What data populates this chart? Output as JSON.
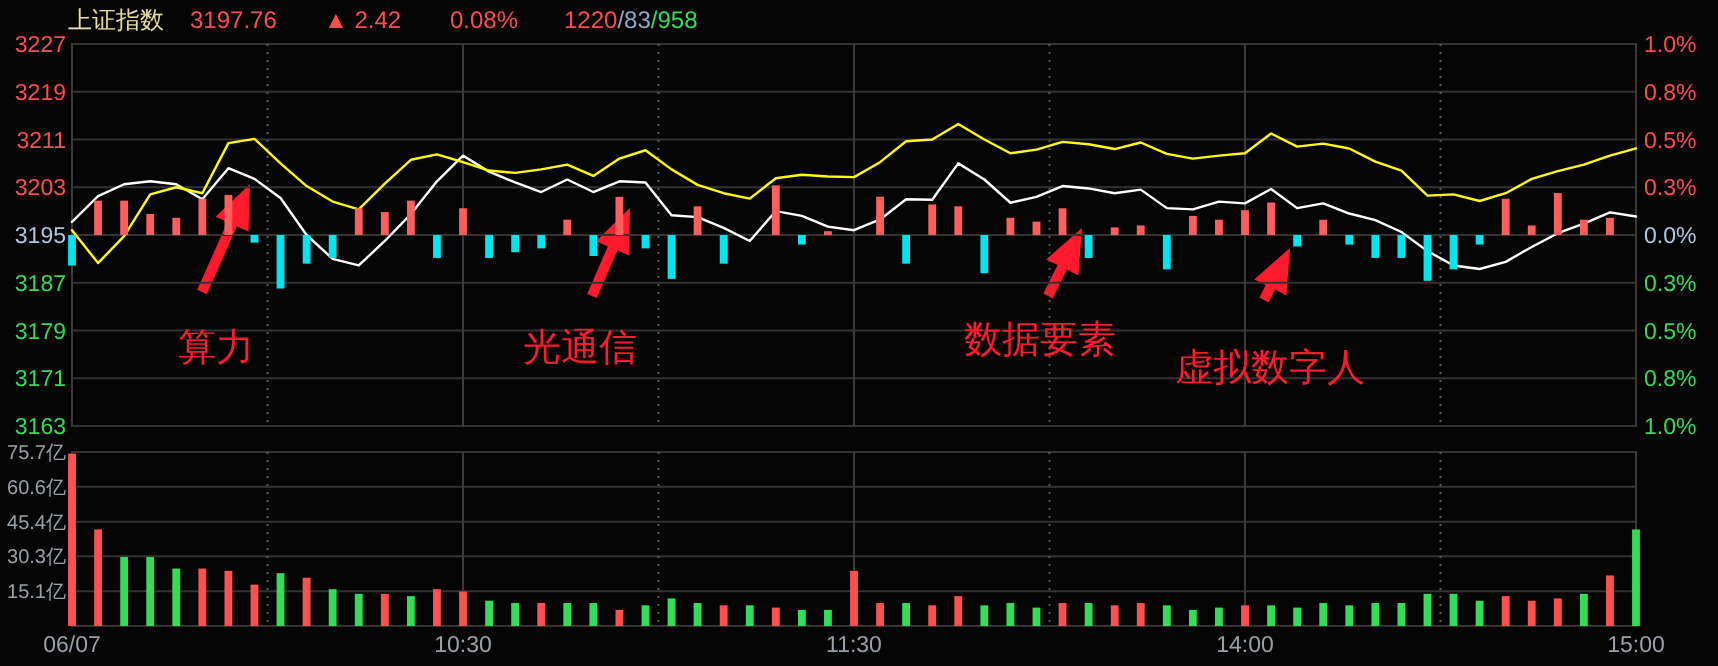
{
  "chart_data": [
    {
      "type": "line",
      "title": "上证指数",
      "annotations": [
        "3197.76",
        "▲ 2.42",
        "0.08%",
        "1220/83/958",
        "算力",
        "光通信",
        "数据要素",
        "虚拟数字人"
      ],
      "categories": [
        null,
        null,
        null,
        null,
        null,
        null,
        null,
        null,
        null,
        null,
        null,
        null,
        null,
        null,
        null,
        null,
        null,
        null,
        null,
        null,
        null,
        null,
        null,
        null,
        null,
        null,
        null,
        null,
        null,
        null,
        null,
        null,
        null,
        null,
        null,
        null,
        null,
        null,
        null,
        null,
        null,
        null,
        null,
        null,
        null,
        null,
        null,
        null,
        null,
        null,
        null,
        null,
        null,
        null,
        null,
        null,
        null,
        null,
        null,
        null,
        null
      ],
      "ylim": [
        3163,
        3227
      ],
      "yticks": [
        3163,
        3171,
        3179,
        3187,
        3195,
        3203,
        3211,
        3219,
        3227
      ],
      "y2lim": [
        -1,
        1
      ],
      "y2ticks": [
        {
          "value": -1,
          "label": "1.0%"
        },
        {
          "value": -0.75,
          "label": "0.8%"
        },
        {
          "value": -0.5,
          "label": "0.5%"
        },
        {
          "value": -0.25,
          "label": "0.3%"
        },
        {
          "value": 0,
          "label": "0.0%"
        },
        {
          "value": 0.25,
          "label": "0.3%"
        },
        {
          "value": 0.5,
          "label": "0.5%"
        },
        {
          "value": 0.75,
          "label": "0.8%"
        },
        {
          "value": 1,
          "label": "1.0%"
        }
      ],
      "grid": true,
      "tick_labels": "y",
      "series": [
        {
          "color": "#ffffff",
          "values": [
            3197.2,
            3201.5,
            3203.5,
            3204,
            3203.5,
            3201,
            3206.2,
            3204.4,
            3201.2,
            3195,
            3191,
            3189.9,
            3194,
            3198.5,
            3204,
            3208.3,
            3205.6,
            3203.8,
            3202.2,
            3204.3,
            3202.2,
            3204,
            3203.8,
            3198.3,
            3198,
            3196.2,
            3194,
            3199,
            3198.2,
            3196.4,
            3195.8,
            3197.6,
            3201,
            3200.9,
            3207,
            3204.3,
            3200.4,
            3201.4,
            3203.2,
            3202.8,
            3202,
            3202.6,
            3199.5,
            3199.3,
            3200.6,
            3200.3,
            3202.7,
            3199.5,
            3200.3,
            3198.6,
            3197.5,
            3195.5,
            3192.3,
            3189.9,
            3189.3,
            3190.5,
            3193,
            3195.3,
            3196.9,
            3198.8,
            3198.1
          ]
        },
        {
          "color": "#ffff00",
          "values": [
            3195.8,
            3190.3,
            3194.8,
            3201.8,
            3203,
            3202,
            3210.4,
            3211.1,
            3207,
            3203.2,
            3200.6,
            3199.3,
            3203.6,
            3207.6,
            3208.5,
            3207.2,
            3205.8,
            3205.4,
            3206,
            3206.8,
            3204.9,
            3207.8,
            3209.2,
            3206,
            3203.4,
            3202,
            3201.1,
            3204.5,
            3205.1,
            3204.8,
            3204.7,
            3207.2,
            3210.7,
            3211,
            3213.6,
            3211,
            3208.7,
            3209.3,
            3210.6,
            3210.2,
            3209.4,
            3210.5,
            3208.6,
            3207.8,
            3208.3,
            3208.7,
            3212,
            3209.8,
            3210.3,
            3209.5,
            3207.3,
            3205.8,
            3201.6,
            3201.8,
            3200.7,
            3202,
            3204.4,
            3205.7,
            3206.8,
            3208.3,
            3209.5
          ]
        },
        {
          "type": "bar",
          "axis": "y2",
          "color": "#ff5e5e",
          "values": [
            null,
            0.18,
            0.18,
            0.11,
            0.09,
            0.19,
            0.21,
            null,
            null,
            null,
            null,
            0.14,
            0.12,
            0.18,
            null,
            0.14,
            null,
            null,
            null,
            0.08,
            null,
            0.2,
            null,
            null,
            0.15,
            null,
            null,
            0.26,
            null,
            0.02,
            null,
            0.2,
            null,
            0.16,
            0.15,
            null,
            0.09,
            0.07,
            0.14,
            null,
            0.04,
            0.05,
            null,
            0.1,
            0.08,
            0.13,
            0.17,
            null,
            0.08,
            null,
            null,
            null,
            null,
            null,
            null,
            0.19,
            0.05,
            0.22,
            0.08,
            0.09,
            null
          ]
        },
        {
          "type": "bar",
          "axis": "y2",
          "color": "#00e5ee",
          "values": [
            -0.16,
            null,
            null,
            null,
            null,
            null,
            null,
            -0.04,
            -0.28,
            -0.15,
            -0.12,
            null,
            null,
            null,
            -0.12,
            null,
            -0.12,
            -0.09,
            -0.07,
            null,
            -0.11,
            null,
            -0.07,
            -0.23,
            null,
            -0.15,
            null,
            null,
            -0.05,
            null,
            null,
            null,
            -0.15,
            null,
            null,
            -0.2,
            null,
            null,
            null,
            -0.12,
            null,
            null,
            -0.18,
            null,
            null,
            null,
            null,
            -0.06,
            null,
            -0.05,
            -0.12,
            -0.12,
            -0.24,
            -0.18,
            -0.05,
            null,
            null,
            null,
            null,
            null,
            null
          ]
        }
      ]
    },
    {
      "type": "bar",
      "categories": [
        "06/07",
        null,
        null,
        null,
        null,
        null,
        null,
        null,
        null,
        null,
        null,
        null,
        null,
        null,
        null,
        "10:30",
        null,
        null,
        null,
        null,
        null,
        null,
        null,
        null,
        null,
        null,
        null,
        null,
        null,
        null,
        "11:30",
        null,
        null,
        null,
        null,
        null,
        null,
        null,
        null,
        null,
        null,
        null,
        null,
        null,
        null,
        "14:00",
        null,
        null,
        null,
        null,
        null,
        null,
        null,
        null,
        null,
        null,
        null,
        null,
        null,
        null,
        "15:00"
      ],
      "ylim": [
        0,
        75.7
      ],
      "yticks": [
        {
          "value": 0,
          "label": null
        },
        {
          "value": 15.1,
          "label": "15.1亿"
        },
        {
          "value": 30.3,
          "label": "30.3亿"
        },
        {
          "value": 45.4,
          "label": "45.4亿"
        },
        {
          "value": 60.6,
          "label": "60.6亿"
        },
        {
          "value": 75.7,
          "label": "75.7亿"
        }
      ],
      "grid": true,
      "values": [
        75,
        42,
        30,
        30,
        25,
        25,
        24,
        18,
        23,
        21,
        16,
        14,
        14,
        13,
        16,
        15,
        11,
        10,
        10,
        10,
        10,
        7,
        9,
        12,
        10,
        9,
        9,
        8,
        7,
        7,
        24,
        10,
        10,
        9,
        13,
        9,
        10,
        8,
        10,
        10,
        9,
        10,
        9,
        7,
        8,
        9,
        9,
        8,
        10,
        9,
        10,
        10,
        14,
        14,
        11,
        13,
        11,
        12,
        14,
        22,
        42
      ],
      "colors": [
        "#ff5050",
        "#ff5050",
        "#33dd55",
        "#33dd55",
        "#33dd55",
        "#ff5050",
        "#ff5050",
        "#ff5050",
        "#33dd55",
        "#ff5050",
        "#33dd55",
        "#33dd55",
        "#ff5050",
        "#33dd55",
        "#ff5050",
        "#ff5050",
        "#33dd55",
        "#33dd55",
        "#ff5050",
        "#33dd55",
        "#33dd55",
        "#ff5050",
        "#33dd55",
        "#33dd55",
        "#33dd55",
        "#ff5050",
        "#33dd55",
        "#ff5050",
        "#33dd55",
        "#33dd55",
        "#ff5050",
        "#ff5050",
        "#33dd55",
        "#ff5050",
        "#ff5050",
        "#33dd55",
        "#33dd55",
        "#33dd55",
        "#ff5050",
        "#33dd55",
        "#ff5050",
        "#ff5050",
        "#33dd55",
        "#33dd55",
        "#33dd55",
        "#ff5050",
        "#33dd55",
        "#33dd55",
        "#33dd55",
        "#33dd55",
        "#33dd55",
        "#33dd55",
        "#33dd55",
        "#33dd55",
        "#33dd55",
        "#ff5050",
        "#ff5050",
        "#ff5050",
        "#33dd55",
        "#ff5050",
        "#33dd55"
      ]
    }
  ]
}
